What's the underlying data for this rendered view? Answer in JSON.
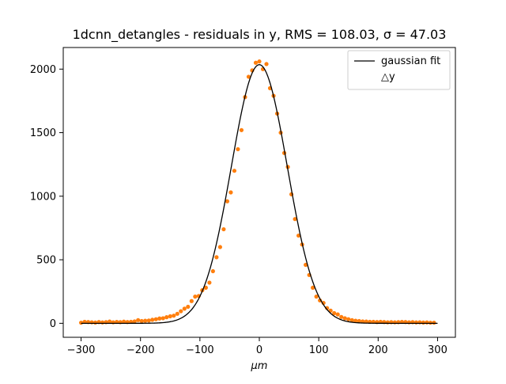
{
  "chart_data": {
    "type": "scatter",
    "title": "1dcnn_detangles - residuals in y, RMS = 108.03, σ = 47.03",
    "xlabel": "μm",
    "ylabel": "",
    "xlim": [
      -330,
      330
    ],
    "ylim": [
      -110,
      2170
    ],
    "x_ticks": [
      -300,
      -200,
      -100,
      0,
      100,
      200,
      300
    ],
    "y_ticks": [
      0,
      500,
      1000,
      1500,
      2000
    ],
    "grid": false,
    "legend_position": "top-right",
    "legend": [
      {
        "label": "gaussian fit",
        "type": "line",
        "color": "#000000"
      },
      {
        "label": "△y",
        "type": "marker",
        "color": "#ff7f0e"
      }
    ],
    "series": [
      {
        "name": "△y",
        "type": "scatter",
        "color": "#ff7f0e",
        "x": [
          -300,
          -294,
          -288,
          -282,
          -276,
          -270,
          -264,
          -258,
          -252,
          -246,
          -240,
          -234,
          -228,
          -222,
          -216,
          -210,
          -204,
          -198,
          -192,
          -186,
          -180,
          -174,
          -168,
          -162,
          -156,
          -150,
          -144,
          -138,
          -132,
          -126,
          -120,
          -114,
          -108,
          -102,
          -96,
          -90,
          -84,
          -78,
          -72,
          -66,
          -60,
          -54,
          -48,
          -42,
          -36,
          -30,
          -24,
          -18,
          -12,
          -6,
          0,
          6,
          12,
          18,
          24,
          30,
          36,
          42,
          48,
          54,
          60,
          66,
          72,
          78,
          84,
          90,
          96,
          102,
          108,
          114,
          120,
          126,
          132,
          138,
          144,
          150,
          156,
          162,
          168,
          174,
          180,
          186,
          192,
          198,
          204,
          210,
          216,
          222,
          228,
          234,
          240,
          246,
          252,
          258,
          264,
          270,
          276,
          282,
          288,
          294
        ],
        "y": [
          5,
          12,
          10,
          8,
          6,
          10,
          7,
          9,
          14,
          8,
          11,
          9,
          13,
          10,
          12,
          15,
          25,
          18,
          20,
          22,
          28,
          32,
          38,
          40,
          48,
          55,
          60,
          75,
          95,
          115,
          130,
          175,
          210,
          215,
          260,
          280,
          320,
          410,
          520,
          600,
          740,
          960,
          1030,
          1200,
          1370,
          1520,
          1780,
          1940,
          1990,
          2050,
          2060,
          2000,
          2040,
          1850,
          1790,
          1650,
          1500,
          1340,
          1230,
          1015,
          820,
          690,
          620,
          460,
          380,
          280,
          210,
          180,
          160,
          120,
          100,
          80,
          70,
          50,
          40,
          32,
          25,
          20,
          18,
          15,
          14,
          12,
          12,
          10,
          12,
          10,
          8,
          9,
          8,
          9,
          11,
          10,
          8,
          9,
          7,
          8,
          6,
          7,
          5,
          5
        ]
      },
      {
        "name": "gaussian fit",
        "type": "line",
        "color": "#000000",
        "amplitude": 2035,
        "mean": 0,
        "sigma": 47.03,
        "x_range": [
          -300,
          300
        ]
      }
    ]
  }
}
